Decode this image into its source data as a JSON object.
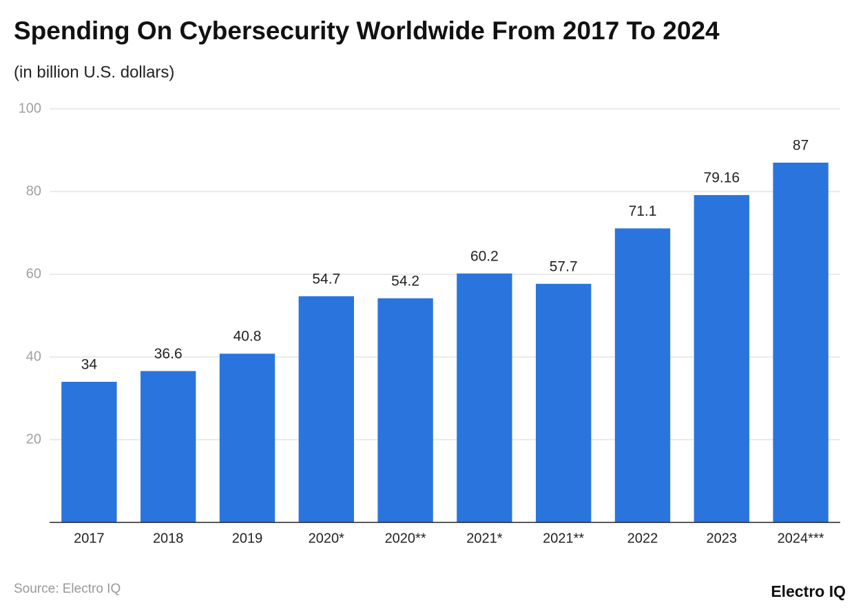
{
  "chart_data": {
    "type": "bar",
    "title": "Spending On Cybersecurity Worldwide From 2017 To 2024",
    "subtitle": "(in billion U.S. dollars)",
    "categories": [
      "2017",
      "2018",
      "2019",
      "2020*",
      "2020**",
      "2021*",
      "2021**",
      "2022",
      "2023",
      "2024***"
    ],
    "values": [
      34,
      36.6,
      40.8,
      54.7,
      54.2,
      60.2,
      57.7,
      71.1,
      79.16,
      87
    ],
    "color": "#2a75dd",
    "ylim": [
      0,
      100
    ],
    "yticks": [
      20,
      40,
      60,
      80,
      100
    ],
    "grid": true,
    "source": "Source: Electro IQ",
    "brand": "Electro IQ"
  }
}
